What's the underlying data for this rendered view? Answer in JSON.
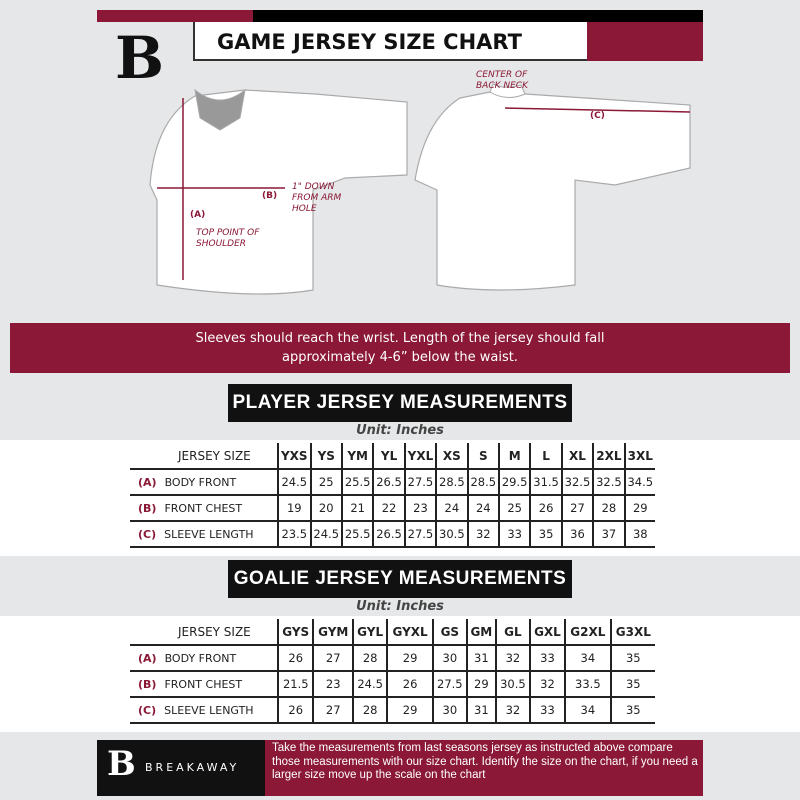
{
  "header": {
    "title": "GAME JERSEY SIZE CHART",
    "brand": "B"
  },
  "diagram": {
    "label_a": "(A)",
    "label_b": "(B)",
    "label_c": "(C)",
    "note_a": "TOP POINT OF SHOULDER",
    "note_b": "1\" DOWN FROM ARM HOLE",
    "note_c": "CENTER OF BACK NECK"
  },
  "banner": {
    "line1": "Sleeves should reach the wrist. Length of the jersey should fall",
    "line2": "approximately 4-6” below the waist."
  },
  "player": {
    "title": "PLAYER JERSEY MEASUREMENTS",
    "unit": "Unit: Inches",
    "header": "JERSEY SIZE",
    "sizes": [
      "YXS",
      "YS",
      "YM",
      "YL",
      "YXL",
      "XS",
      "S",
      "M",
      "L",
      "XL",
      "2XL",
      "3XL"
    ],
    "rows": [
      {
        "key": "(A)",
        "label": "BODY FRONT",
        "values": [
          "24.5",
          "25",
          "25.5",
          "26.5",
          "27.5",
          "28.5",
          "28.5",
          "29.5",
          "31.5",
          "32.5",
          "32.5",
          "34.5"
        ]
      },
      {
        "key": "(B)",
        "label": "FRONT CHEST",
        "values": [
          "19",
          "20",
          "21",
          "22",
          "23",
          "24",
          "24",
          "25",
          "26",
          "27",
          "28",
          "29"
        ]
      },
      {
        "key": "(C)",
        "label": "SLEEVE LENGTH",
        "values": [
          "23.5",
          "24.5",
          "25.5",
          "26.5",
          "27.5",
          "30.5",
          "32",
          "33",
          "35",
          "36",
          "37",
          "38"
        ]
      }
    ]
  },
  "goalie": {
    "title": "GOALIE JERSEY MEASUREMENTS",
    "unit": "Unit: Inches",
    "header": "JERSEY SIZE",
    "sizes": [
      "GYS",
      "GYM",
      "GYL",
      "GYXL",
      "GS",
      "GM",
      "GL",
      "GXL",
      "G2XL",
      "G3XL"
    ],
    "rows": [
      {
        "key": "(A)",
        "label": "BODY FRONT",
        "values": [
          "26",
          "27",
          "28",
          "29",
          "30",
          "31",
          "32",
          "33",
          "34",
          "35"
        ]
      },
      {
        "key": "(B)",
        "label": "FRONT CHEST",
        "values": [
          "21.5",
          "23",
          "24.5",
          "26",
          "27.5",
          "29",
          "30.5",
          "32",
          "33.5",
          "35"
        ]
      },
      {
        "key": "(C)",
        "label": "SLEEVE LENGTH",
        "values": [
          "26",
          "27",
          "28",
          "29",
          "30",
          "31",
          "32",
          "33",
          "34",
          "35"
        ]
      }
    ]
  },
  "footer": {
    "brand": "BREAKAWAY",
    "text": "Take the measurements from last seasons jersey as instructed above compare those measurements  with our size chart. Identify the size on the chart, if you need a larger size move up the scale on the chart"
  },
  "colors": {
    "accent": "#8a1836",
    "dark": "#111111",
    "background": "#e6e7e8"
  }
}
